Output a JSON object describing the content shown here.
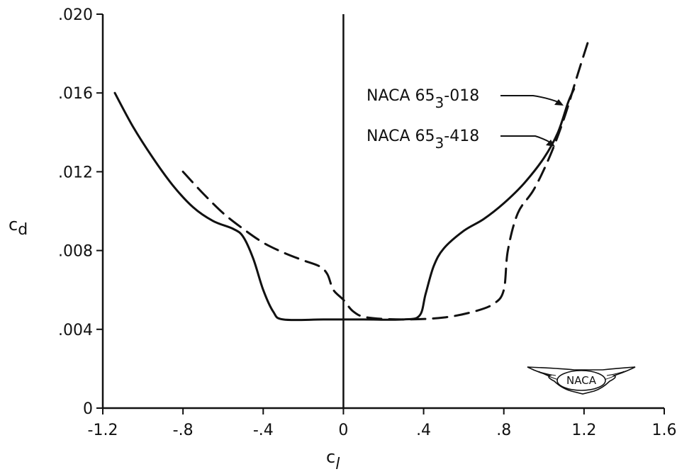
{
  "chart_data": {
    "type": "line",
    "xlabel": "c",
    "xlabel_sub": "l",
    "ylabel": "c",
    "ylabel_sub": "d",
    "xlim": [
      -1.2,
      1.6
    ],
    "ylim": [
      0,
      0.02
    ],
    "x_ticks": [
      -1.2,
      -0.8,
      -0.4,
      0,
      0.4,
      0.8,
      1.2,
      1.6
    ],
    "x_tick_labels": [
      "-1.2",
      "-.8",
      "-.4",
      "0",
      ".4",
      ".8",
      "1.2",
      "1.6"
    ],
    "y_ticks": [
      0,
      0.004,
      0.008,
      0.012,
      0.016,
      0.02
    ],
    "y_tick_labels": [
      "0",
      ".004",
      ".008",
      ".012",
      ".016",
      ".020"
    ],
    "grid": false,
    "series": [
      {
        "name": "NACA 65₃-018",
        "label_main": "NACA 65",
        "label_sub": "3",
        "label_tail": "-018",
        "style": "solid",
        "points": [
          [
            -1.14,
            0.016
          ],
          [
            -1.05,
            0.0143
          ],
          [
            -0.95,
            0.0127
          ],
          [
            -0.85,
            0.0113
          ],
          [
            -0.75,
            0.0102
          ],
          [
            -0.65,
            0.0095
          ],
          [
            -0.55,
            0.0091
          ],
          [
            -0.5,
            0.0087
          ],
          [
            -0.45,
            0.0076
          ],
          [
            -0.4,
            0.006
          ],
          [
            -0.35,
            0.0049
          ],
          [
            -0.3,
            0.0045
          ],
          [
            -0.1,
            0.0045
          ],
          [
            0.1,
            0.0045
          ],
          [
            0.3,
            0.0045
          ],
          [
            0.38,
            0.0047
          ],
          [
            0.41,
            0.0058
          ],
          [
            0.45,
            0.0072
          ],
          [
            0.5,
            0.0081
          ],
          [
            0.6,
            0.009
          ],
          [
            0.7,
            0.0096
          ],
          [
            0.8,
            0.0104
          ],
          [
            0.9,
            0.0114
          ],
          [
            1.0,
            0.0127
          ],
          [
            1.07,
            0.014
          ],
          [
            1.12,
            0.0155
          ],
          [
            1.15,
            0.0162
          ]
        ]
      },
      {
        "name": "NACA 65₃-418",
        "label_main": "NACA 65",
        "label_sub": "3",
        "label_tail": "-418",
        "style": "dashed",
        "points": [
          [
            -0.8,
            0.012
          ],
          [
            -0.7,
            0.0109
          ],
          [
            -0.6,
            0.0099
          ],
          [
            -0.5,
            0.0091
          ],
          [
            -0.4,
            0.0084
          ],
          [
            -0.3,
            0.0079
          ],
          [
            -0.2,
            0.0075
          ],
          [
            -0.12,
            0.0072
          ],
          [
            -0.08,
            0.0068
          ],
          [
            -0.05,
            0.006
          ],
          [
            0.0,
            0.0055
          ],
          [
            0.05,
            0.0049
          ],
          [
            0.12,
            0.0046
          ],
          [
            0.3,
            0.0045
          ],
          [
            0.5,
            0.0046
          ],
          [
            0.65,
            0.0049
          ],
          [
            0.75,
            0.0053
          ],
          [
            0.8,
            0.006
          ],
          [
            0.82,
            0.008
          ],
          [
            0.87,
            0.0099
          ],
          [
            0.95,
            0.0111
          ],
          [
            1.03,
            0.0128
          ],
          [
            1.1,
            0.0147
          ],
          [
            1.17,
            0.017
          ],
          [
            1.22,
            0.0186
          ]
        ]
      }
    ]
  },
  "logo": {
    "text": "NACA",
    "icon": "naca-winged-logo-icon"
  },
  "colors": {
    "ink": "#111111",
    "background": "#ffffff"
  }
}
